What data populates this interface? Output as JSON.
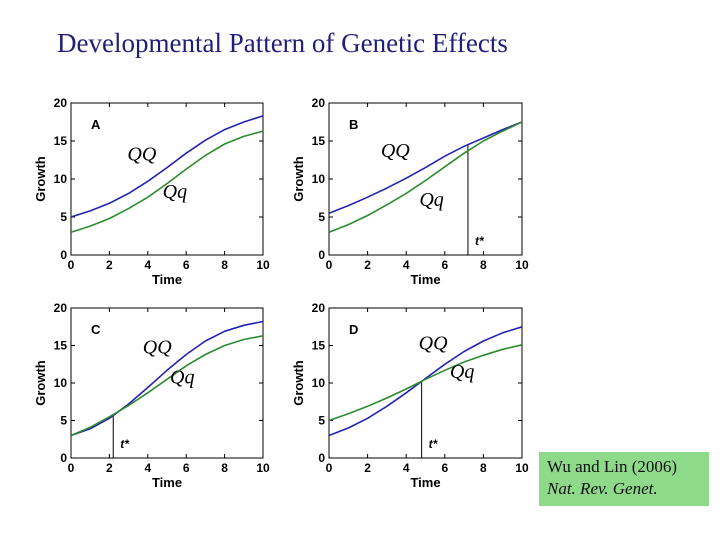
{
  "title": "Developmental Pattern of Genetic Effects",
  "citation": {
    "line1": "Wu and Lin (2006)",
    "line2": "Nat. Rev. Genet."
  },
  "colors": {
    "QQ": "#2323b4",
    "Qq": "#2f8a2f"
  },
  "chart_data": [
    {
      "type": "line",
      "panel": "A",
      "xlabel": "Time",
      "ylabel": "Growth",
      "xlim": [
        0,
        10
      ],
      "ylim": [
        0,
        20
      ],
      "xticks": [
        0,
        2,
        4,
        6,
        8,
        10
      ],
      "yticks": [
        0,
        5,
        10,
        15,
        20
      ],
      "grid": false,
      "x": [
        0,
        1,
        2,
        3,
        4,
        5,
        6,
        7,
        8,
        9,
        10
      ],
      "series": [
        {
          "name": "QQ",
          "values": [
            5.0,
            5.8,
            6.8,
            8.1,
            9.7,
            11.5,
            13.4,
            15.1,
            16.5,
            17.5,
            18.3
          ]
        },
        {
          "name": "Qq",
          "values": [
            3.0,
            3.8,
            4.8,
            6.1,
            7.6,
            9.4,
            11.3,
            13.1,
            14.6,
            15.6,
            16.3
          ]
        }
      ],
      "annotations": [
        {
          "text": "QQ",
          "series": "QQ"
        },
        {
          "text": "Qq",
          "series": "Qq"
        }
      ]
    },
    {
      "type": "line",
      "panel": "B",
      "xlabel": "Time",
      "ylabel": "Growth",
      "xlim": [
        0,
        10
      ],
      "ylim": [
        0,
        20
      ],
      "xticks": [
        0,
        2,
        4,
        6,
        8,
        10
      ],
      "yticks": [
        0,
        5,
        10,
        15,
        20
      ],
      "grid": false,
      "x": [
        0,
        1,
        2,
        3,
        4,
        5,
        6,
        7,
        8,
        9,
        10
      ],
      "series": [
        {
          "name": "QQ",
          "values": [
            5.5,
            6.5,
            7.6,
            8.8,
            10.1,
            11.5,
            13.0,
            14.3,
            15.4,
            16.5,
            17.5
          ]
        },
        {
          "name": "Qq",
          "values": [
            3.0,
            4.0,
            5.2,
            6.6,
            8.1,
            9.8,
            11.6,
            13.4,
            15.0,
            16.3,
            17.5
          ]
        }
      ],
      "tstar": 7.2,
      "tstar_label": "t*",
      "annotations": [
        {
          "text": "QQ",
          "series": "QQ"
        },
        {
          "text": "Qq",
          "series": "Qq"
        }
      ]
    },
    {
      "type": "line",
      "panel": "C",
      "xlabel": "Time",
      "ylabel": "Growth",
      "xlim": [
        0,
        10
      ],
      "ylim": [
        0,
        20
      ],
      "xticks": [
        0,
        2,
        4,
        6,
        8,
        10
      ],
      "yticks": [
        0,
        5,
        10,
        15,
        20
      ],
      "grid": false,
      "x": [
        0,
        1,
        2,
        3,
        4,
        5,
        6,
        7,
        8,
        9,
        10
      ],
      "series": [
        {
          "name": "QQ",
          "values": [
            3.0,
            3.9,
            5.3,
            7.2,
            9.4,
            11.7,
            13.8,
            15.6,
            16.9,
            17.7,
            18.2
          ]
        },
        {
          "name": "Qq",
          "values": [
            3.0,
            4.1,
            5.5,
            7.0,
            8.7,
            10.5,
            12.3,
            13.8,
            15.0,
            15.8,
            16.3
          ]
        }
      ],
      "tstar": 2.2,
      "tstar_label": "t*",
      "annotations": [
        {
          "text": "QQ",
          "series": "QQ"
        },
        {
          "text": "Qq",
          "series": "Qq"
        }
      ]
    },
    {
      "type": "line",
      "panel": "D",
      "xlabel": "Time",
      "ylabel": "Growth",
      "xlim": [
        0,
        10
      ],
      "ylim": [
        0,
        20
      ],
      "xticks": [
        0,
        2,
        4,
        6,
        8,
        10
      ],
      "yticks": [
        0,
        5,
        10,
        15,
        20
      ],
      "grid": false,
      "x": [
        0,
        1,
        2,
        3,
        4,
        5,
        6,
        7,
        8,
        9,
        10
      ],
      "series": [
        {
          "name": "QQ",
          "values": [
            3.0,
            4.0,
            5.3,
            6.9,
            8.7,
            10.6,
            12.5,
            14.2,
            15.6,
            16.7,
            17.5
          ]
        },
        {
          "name": "Qq",
          "values": [
            5.0,
            5.9,
            6.9,
            8.0,
            9.2,
            10.5,
            11.7,
            12.8,
            13.7,
            14.5,
            15.1
          ]
        }
      ],
      "tstar": 4.8,
      "tstar_label": "t*",
      "annotations": [
        {
          "text": "QQ",
          "series": "QQ"
        },
        {
          "text": "Qq",
          "series": "Qq"
        }
      ]
    }
  ]
}
